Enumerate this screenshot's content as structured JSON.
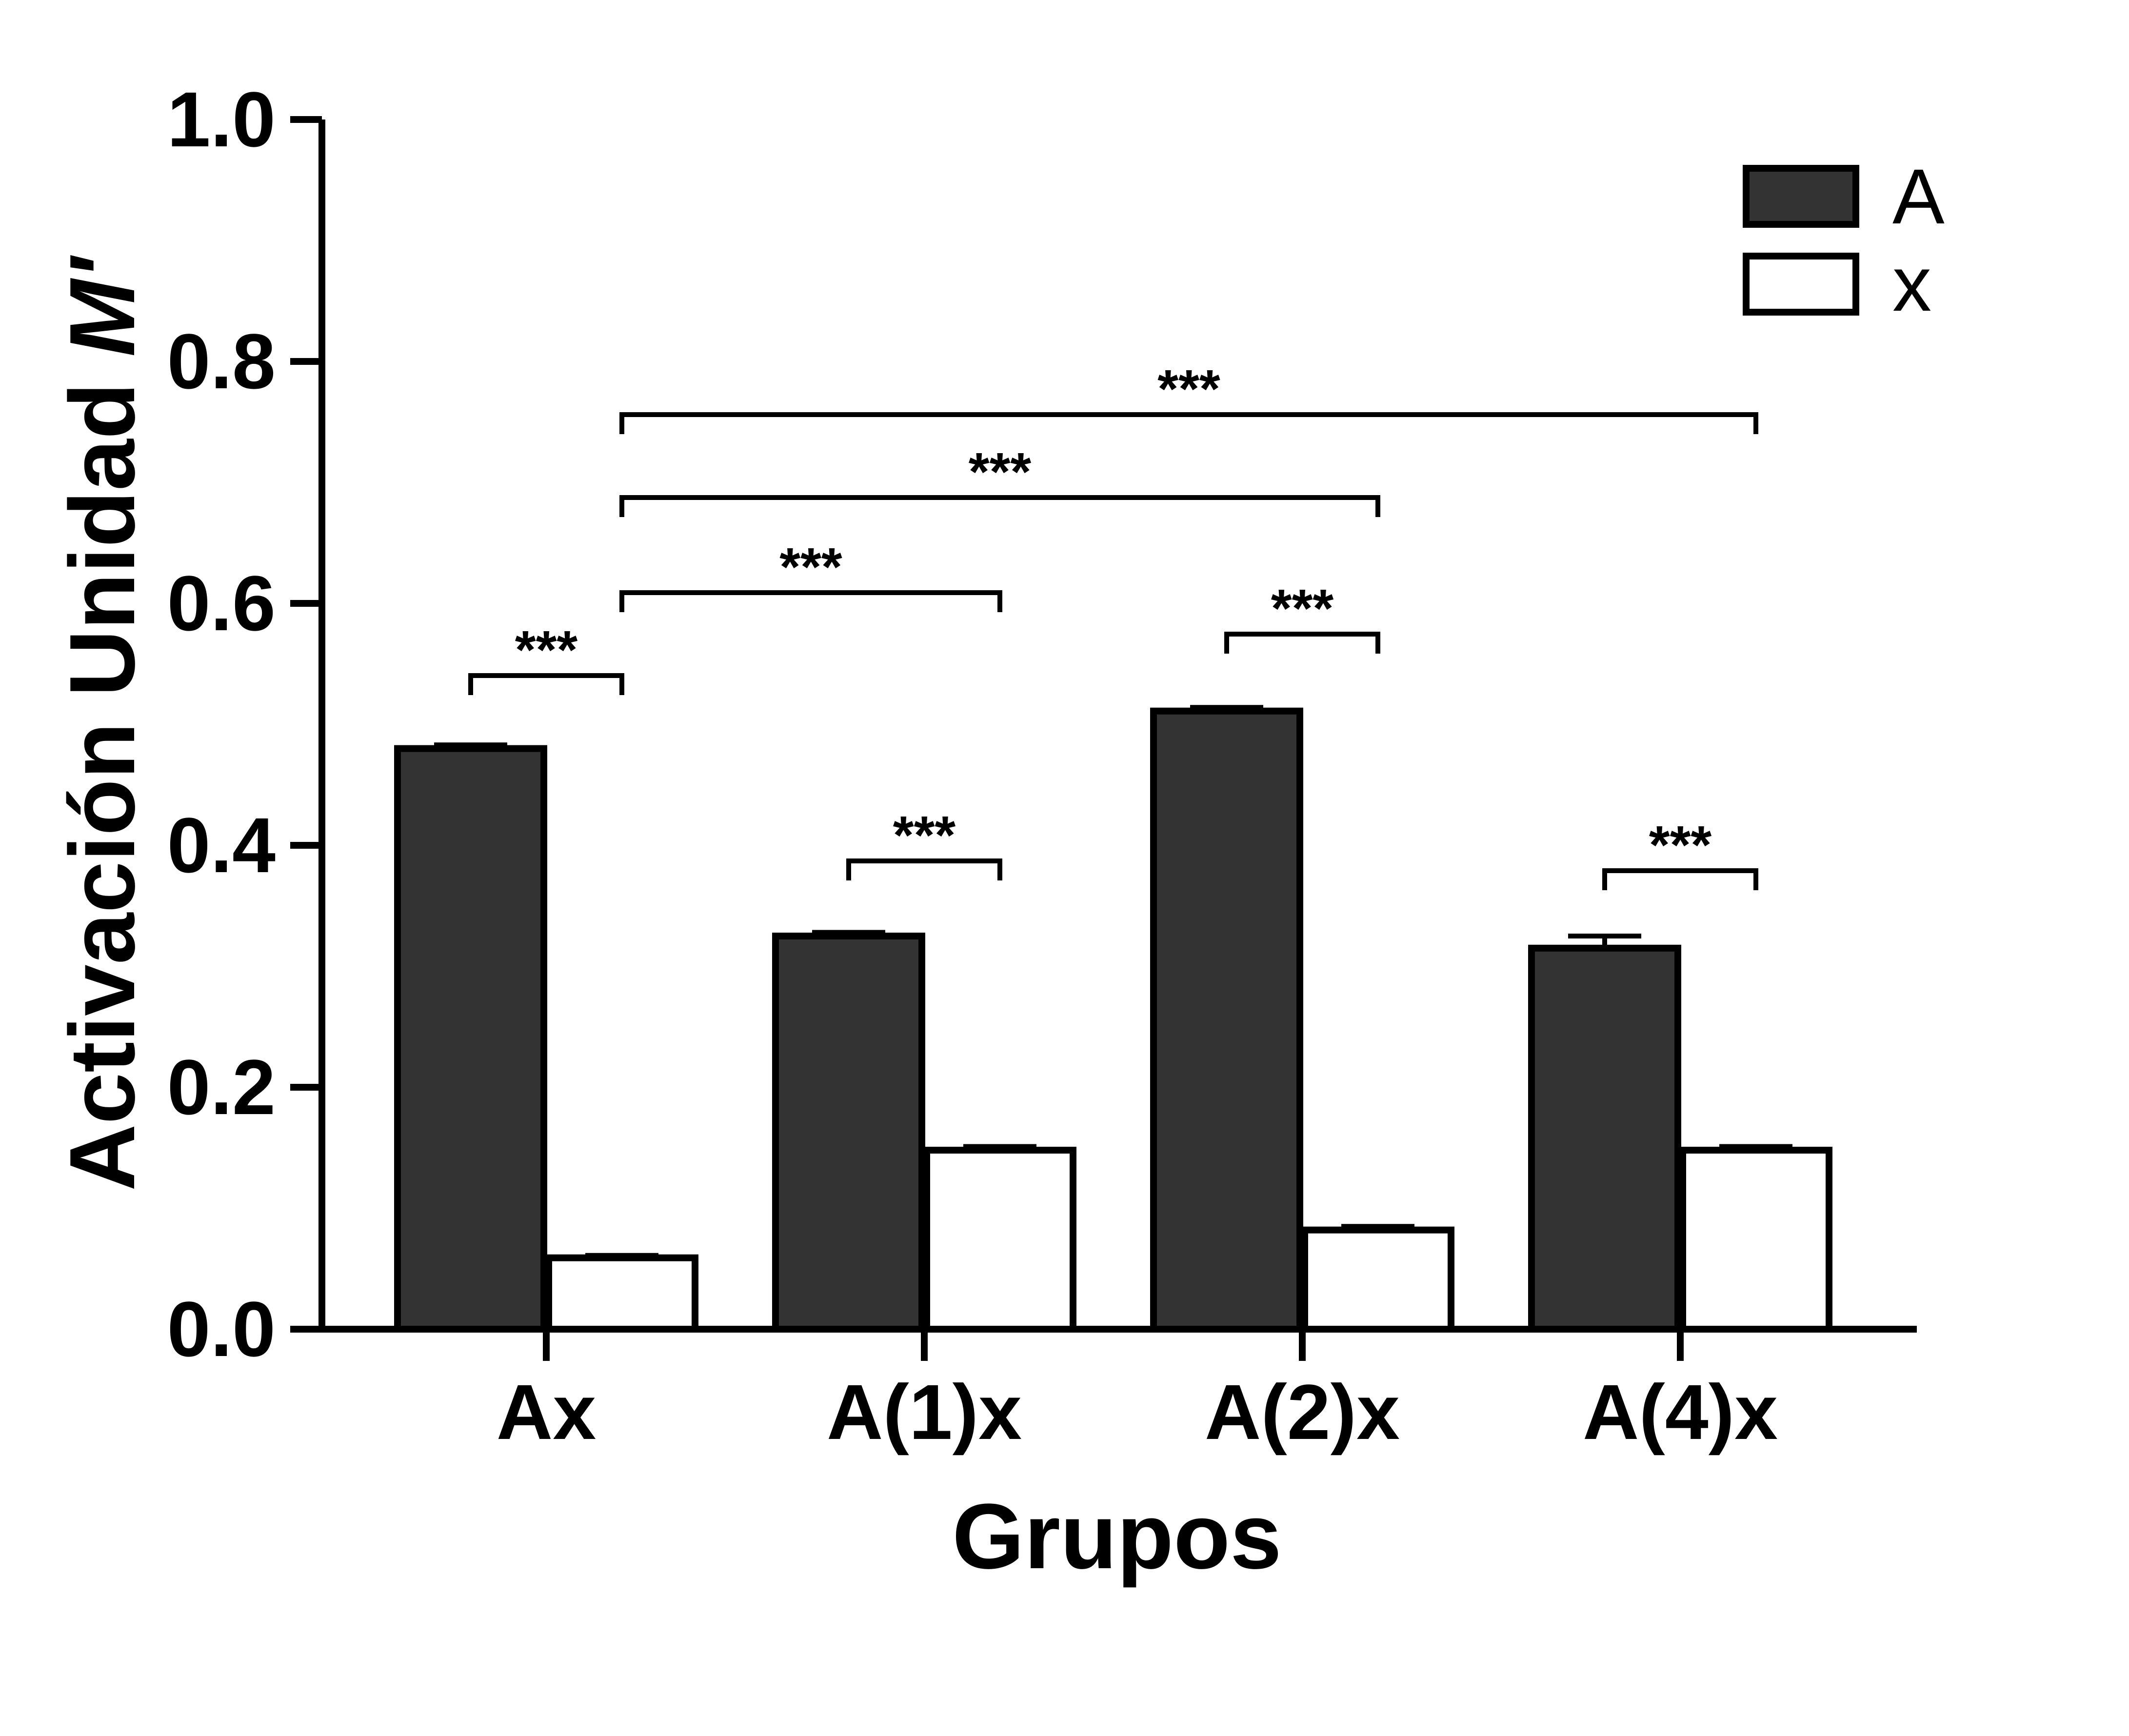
{
  "chart_data": {
    "type": "bar",
    "categories": [
      "Ax",
      "A(1)x",
      "A(2)x",
      "A(4)x"
    ],
    "series": [
      {
        "name": "A",
        "values": [
          0.48,
          0.325,
          0.511,
          0.315
        ],
        "errors": [
          0.003,
          0.003,
          0.003,
          0.01
        ],
        "color": "#333333"
      },
      {
        "name": "x",
        "values": [
          0.059,
          0.148,
          0.082,
          0.148
        ],
        "errors": [
          0.002,
          0.003,
          0.003,
          0.003
        ],
        "color": "#ffffff"
      }
    ],
    "xlabel": "Grupos",
    "ylabel_prefix": "Activación Unidad ",
    "ylabel_italic": "M'",
    "ylim": [
      0,
      1.0
    ],
    "yticks": [
      "0.0",
      "0.2",
      "0.4",
      "0.6",
      "0.8",
      "1.0"
    ],
    "legend_position": "top-right",
    "significance": [
      {
        "from": "Ax:A",
        "to": "Ax:x",
        "label": "***"
      },
      {
        "from": "Ax:x",
        "to": "A(1)x:x",
        "label": "***"
      },
      {
        "from": "Ax:x",
        "to": "A(2)x:x",
        "label": "***"
      },
      {
        "from": "Ax:x",
        "to": "A(4)x:x",
        "label": "***"
      },
      {
        "from": "A(1)x:A",
        "to": "A(1)x:x",
        "label": "***"
      },
      {
        "from": "A(2)x:A",
        "to": "A(2)x:x",
        "label": "***"
      },
      {
        "from": "A(4)x:A",
        "to": "A(4)x:x",
        "label": "***"
      }
    ]
  }
}
